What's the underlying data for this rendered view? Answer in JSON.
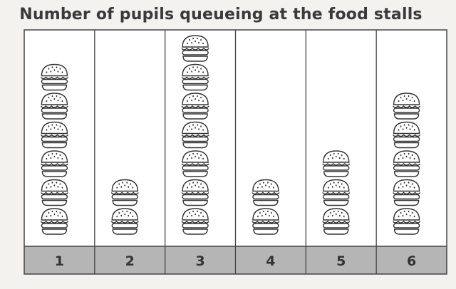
{
  "chart_data": {
    "type": "pictogram",
    "title": "Number of pupils queueing at the food stalls",
    "categories": [
      "1",
      "2",
      "3",
      "4",
      "5",
      "6"
    ],
    "values": [
      6,
      2,
      7,
      2,
      3,
      5
    ],
    "symbol": "burger-icon"
  },
  "colors": {
    "background": "#f3f2ee",
    "panel": "#ffffff",
    "label_band": "#b5b5b5",
    "border": "#444444",
    "icon_stroke": "#333333"
  }
}
